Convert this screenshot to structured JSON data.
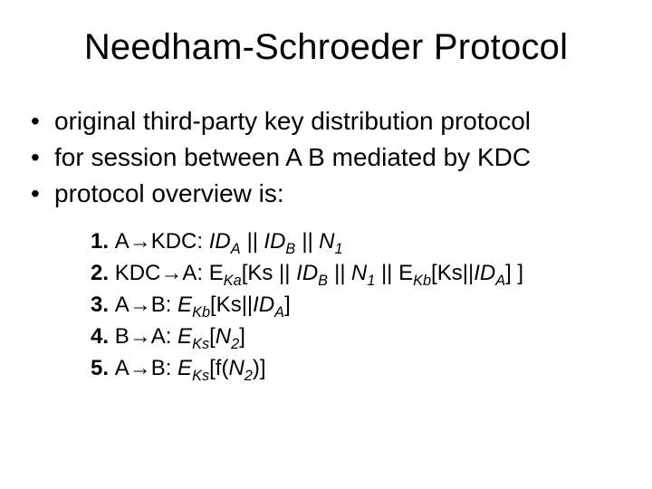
{
  "title": "Needham-Schroeder Protocol",
  "bullets": [
    "original third-party key distribution protocol",
    "for session between A B mediated by KDC",
    "protocol overview is:"
  ],
  "steps": [
    {
      "num": "1.",
      "prefix": "A→KDC:",
      "main": " ID",
      "s1": "A",
      "mid1": " || ID",
      "s2": "B",
      "mid2": " || N",
      "s3": "1",
      "tail": ""
    },
    {
      "num": "2.",
      "prefix": "KDC→A:",
      "main": " E",
      "s1": "Ka",
      "mid1": "[Ks || ID",
      "s2": "B",
      "mid2": " || N",
      "s3": "1",
      "mid3": " || E",
      "s4": "Kb",
      "mid4": "[Ks||ID",
      "s5": "A",
      "tail": "] ]"
    },
    {
      "num": "3.",
      "prefix": "A→B:",
      "main": " E",
      "s1": "Kb",
      "mid1": "[Ks||ID",
      "s2": "A",
      "tail": "]"
    },
    {
      "num": "4.",
      "prefix": "B→A:",
      "main": " E",
      "s1": "Ks",
      "mid1": "[N",
      "s2": "2",
      "tail": "]"
    },
    {
      "num": "5.",
      "prefix": "A→B:",
      "main": " E",
      "s1": "Ks",
      "mid1": "[f(N",
      "s2": "2",
      "tail": ")]"
    }
  ],
  "colors": {
    "bg": "#ffffff",
    "fg": "#000000"
  }
}
